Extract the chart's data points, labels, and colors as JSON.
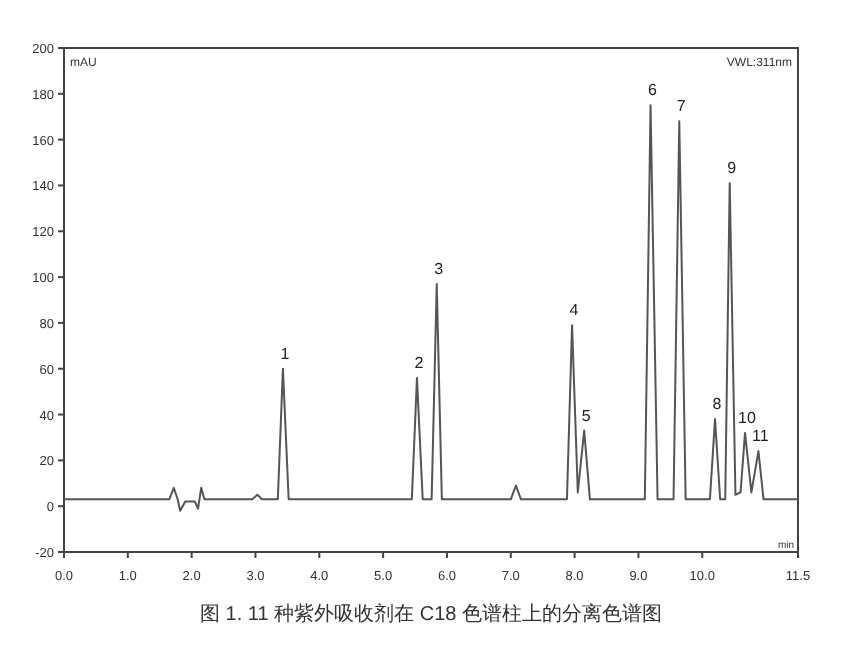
{
  "chart_data": {
    "type": "line",
    "xlabel": "min",
    "ylabel": "mAU",
    "xlim": [
      0,
      11.5
    ],
    "ylim": [
      -20,
      200
    ],
    "xticks": [
      {
        "value": 0,
        "label": "0.0"
      },
      {
        "value": 1,
        "label": "1.0"
      },
      {
        "value": 2,
        "label": "2.0"
      },
      {
        "value": 3,
        "label": "3.0"
      },
      {
        "value": 4,
        "label": "4.0"
      },
      {
        "value": 5,
        "label": "5.0"
      },
      {
        "value": 6,
        "label": "6.0"
      },
      {
        "value": 7,
        "label": "7.0"
      },
      {
        "value": 8,
        "label": "8.0"
      },
      {
        "value": 9,
        "label": "9.0"
      },
      {
        "value": 10,
        "label": "10.0"
      },
      11.5
    ],
    "yticks": [
      -20,
      0,
      20,
      40,
      60,
      80,
      100,
      120,
      140,
      160,
      180,
      200
    ],
    "grid": false,
    "marker": "none",
    "line_style": "solid",
    "series": [
      {
        "color": "#555555",
        "x": [
          0,
          1.65,
          1.72,
          1.78,
          1.82,
          1.9,
          2.05,
          2.1,
          2.15,
          2.2,
          2.95,
          3.03,
          3.1,
          3.35,
          3.43,
          3.52,
          5.45,
          5.53,
          5.62,
          5.76,
          5.84,
          5.92,
          7.0,
          7.08,
          7.16,
          7.88,
          7.96,
          8.05,
          8.15,
          8.24,
          9.1,
          9.19,
          9.3,
          9.55,
          9.64,
          9.74,
          10.12,
          10.2,
          10.28,
          10.36,
          10.43,
          10.52,
          10.6,
          10.67,
          10.77,
          10.88,
          10.96,
          11.5
        ],
        "values": [
          3,
          3,
          8,
          3,
          -2,
          2,
          2,
          -1,
          8,
          3,
          3,
          5,
          3,
          3,
          60,
          3,
          3,
          56,
          3,
          3,
          97,
          3,
          3,
          9,
          3,
          3,
          79,
          6,
          33,
          3,
          3,
          175,
          3,
          3,
          168,
          3,
          3,
          38,
          3,
          3,
          141,
          5,
          6,
          32,
          6,
          24,
          3,
          3
        ]
      }
    ],
    "annotations": [
      {
        "text": "1",
        "x": 3.43,
        "y": 60
      },
      {
        "text": "2",
        "x": 5.53,
        "y": 56
      },
      {
        "text": "3",
        "x": 5.84,
        "y": 97
      },
      {
        "text": "4",
        "x": 7.96,
        "y": 79
      },
      {
        "text": "5",
        "x": 8.15,
        "y": 33
      },
      {
        "text": "6",
        "x": 9.19,
        "y": 175
      },
      {
        "text": "7",
        "x": 9.64,
        "y": 168
      },
      {
        "text": "8",
        "x": 10.2,
        "y": 38
      },
      {
        "text": "9",
        "x": 10.43,
        "y": 141
      },
      {
        "text": "10",
        "x": 10.67,
        "y": 32
      },
      {
        "text": "11",
        "x": 10.88,
        "y": 24
      },
      "VWL:311nm",
      "图 1. 11 种紫外吸收剂在 C18 色谱柱上的分离色谱图"
    ]
  }
}
